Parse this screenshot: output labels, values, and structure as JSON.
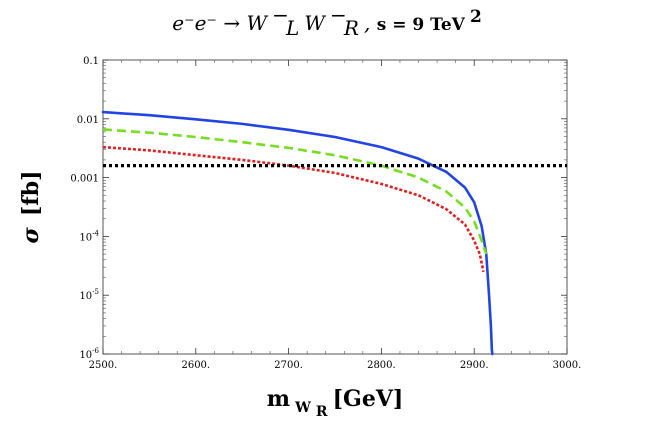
{
  "chart_data": {
    "type": "line",
    "title": {
      "process_lhs": "e⁻e⁻ → ",
      "process_rhs_W": "W",
      "wl_sub": "L",
      "wr_sub": "R",
      "w_sup": "−",
      "separator": " ,  ",
      "energy": "s = 9 TeV",
      "energy_sup": "2"
    },
    "xlabel": {
      "main": "m",
      "sub": "W",
      "subsub": "R",
      "unit": "[GeV]"
    },
    "ylabel": {
      "main": "σ",
      "unit": "[fb]"
    },
    "xlim": [
      2500,
      3000
    ],
    "ylim_log10": [
      -6,
      -1
    ],
    "yscale": "log",
    "x_ticks": [
      {
        "value": 2500,
        "label": "2500."
      },
      {
        "value": 2600,
        "label": "2600."
      },
      {
        "value": 2700,
        "label": "2700."
      },
      {
        "value": 2800,
        "label": "2800."
      },
      {
        "value": 2900,
        "label": "2900."
      },
      {
        "value": 3000,
        "label": "3000."
      }
    ],
    "y_ticks": [
      {
        "value": 0.1,
        "label": "0.1"
      },
      {
        "value": 0.01,
        "label": "0.01"
      },
      {
        "value": 0.001,
        "label": "0.001"
      },
      {
        "value": 0.0001,
        "label": "10",
        "sup": "-4"
      },
      {
        "value": 1e-05,
        "label": "10",
        "sup": "-5"
      },
      {
        "value": 1e-06,
        "label": "10",
        "sup": "-6"
      }
    ],
    "series": [
      {
        "name": "blue-solid",
        "color": "#2244e0",
        "dash": "solid",
        "x": [
          2500,
          2550,
          2600,
          2650,
          2700,
          2750,
          2800,
          2840,
          2870,
          2890,
          2900,
          2908,
          2913,
          2916,
          2918,
          2919,
          2919.5
        ],
        "y": [
          0.013,
          0.0115,
          0.0098,
          0.0082,
          0.0065,
          0.0049,
          0.0033,
          0.0021,
          0.00125,
          0.00068,
          0.00038,
          0.00015,
          5e-05,
          1e-05,
          3e-06,
          1.2e-06,
          1e-06
        ]
      },
      {
        "name": "green-dashed",
        "color": "#77dd22",
        "dash": "dashed",
        "x": [
          2500,
          2550,
          2600,
          2650,
          2700,
          2750,
          2800,
          2840,
          2870,
          2890,
          2900,
          2908,
          2913
        ],
        "y": [
          0.0066,
          0.0058,
          0.0049,
          0.004,
          0.0032,
          0.0024,
          0.0016,
          0.001,
          0.00058,
          0.00031,
          0.00018,
          8.5e-05,
          5e-05
        ]
      },
      {
        "name": "red-dotted",
        "color": "#dd2222",
        "dash": "dotted",
        "x": [
          2500,
          2550,
          2600,
          2650,
          2700,
          2750,
          2800,
          2840,
          2870,
          2890,
          2900,
          2906,
          2910
        ],
        "y": [
          0.0033,
          0.0029,
          0.0024,
          0.002,
          0.0016,
          0.0012,
          0.00078,
          0.0005,
          0.00029,
          0.00016,
          8.5e-05,
          5e-05,
          2.5e-05
        ]
      },
      {
        "name": "black-dotted-threshold",
        "color": "#000000",
        "dash": "dotted-thick",
        "x": [
          2500,
          3000
        ],
        "y": [
          0.0016,
          0.0016
        ]
      }
    ]
  }
}
